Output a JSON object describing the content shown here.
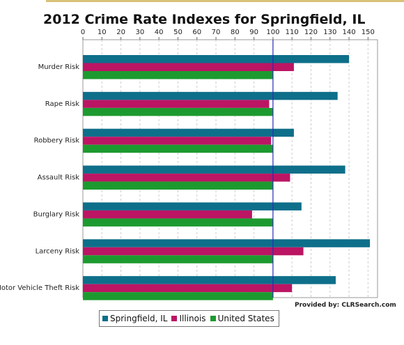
{
  "title": "2012 Crime Rate Indexes for Springfield, IL",
  "credit": "Provided by: CLRSearch.com",
  "colors": {
    "springfield": "#0e6f8a",
    "illinois": "#bb1564",
    "us": "#1d9a2f",
    "reference_line": "#2a2ab8",
    "grid": "#cccccc"
  },
  "chart_data": {
    "type": "bar",
    "orientation": "horizontal",
    "title": "2012 Crime Rate Indexes for Springfield, IL",
    "categories": [
      "Murder Risk",
      "Rape Risk",
      "Robbery Risk",
      "Assault Risk",
      "Burglary Risk",
      "Larceny Risk",
      "Motor Vehicle Theft Risk"
    ],
    "series": [
      {
        "name": "Springfield, IL",
        "color": "#0e6f8a",
        "values": [
          140,
          134,
          111,
          138,
          115,
          151,
          133
        ]
      },
      {
        "name": "Illinois",
        "color": "#bb1564",
        "values": [
          111,
          98,
          99,
          109,
          89,
          116,
          110
        ]
      },
      {
        "name": "United States",
        "color": "#1d9a2f",
        "values": [
          100,
          100,
          100,
          100,
          100,
          100,
          100
        ]
      }
    ],
    "xlim": [
      0,
      155
    ],
    "xticks": [
      0,
      10,
      20,
      30,
      40,
      50,
      60,
      70,
      80,
      90,
      100,
      110,
      120,
      130,
      140,
      150
    ],
    "reference_value": 100,
    "axis_position": "top",
    "grid": true,
    "legend_position": "bottom"
  }
}
